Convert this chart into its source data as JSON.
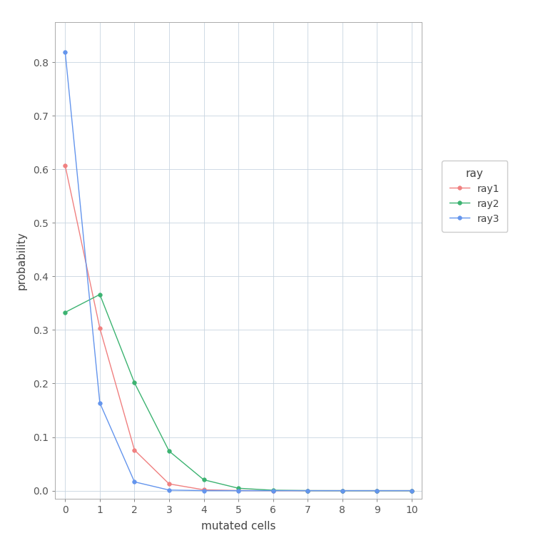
{
  "ray1": {
    "x": [
      0,
      1,
      2,
      3,
      4,
      5,
      6,
      7,
      8,
      9,
      10
    ],
    "y": [
      0.6065,
      0.3033,
      0.0758,
      0.0126,
      0.0016,
      0.0002,
      0.0,
      0.0,
      0.0,
      0.0,
      0.0
    ],
    "color": "#F08080",
    "label": "ray1"
  },
  "ray2": {
    "x": [
      0,
      1,
      2,
      3,
      4,
      5,
      6,
      7,
      8,
      9,
      10
    ],
    "y": [
      0.3329,
      0.3662,
      0.2013,
      0.0738,
      0.0203,
      0.0045,
      0.0008,
      0.0001,
      0.0,
      0.0,
      0.0
    ],
    "color": "#3CB371",
    "label": "ray2"
  },
  "ray3": {
    "x": [
      0,
      1,
      2,
      3,
      4,
      5,
      6,
      7,
      8,
      9,
      10
    ],
    "y": [
      0.8187,
      0.1637,
      0.0164,
      0.0011,
      0.0001,
      0.0,
      0.0,
      0.0,
      0.0,
      0.0,
      0.0
    ],
    "color": "#6495ED",
    "label": "ray3"
  },
  "xlabel": "mutated cells",
  "ylabel": "probability",
  "legend_title": "ray",
  "xlim": [
    -0.3,
    10.3
  ],
  "ylim": [
    -0.015,
    0.875
  ],
  "xticks": [
    0,
    1,
    2,
    3,
    4,
    5,
    6,
    7,
    8,
    9,
    10
  ],
  "yticks": [
    0.0,
    0.1,
    0.2,
    0.3,
    0.4,
    0.5,
    0.6,
    0.7,
    0.8
  ],
  "plot_bg_color": "#FFFFFF",
  "fig_bg_color": "#FFFFFF",
  "grid_color": "#C8D4E0",
  "spine_color": "#AAAAAA",
  "label_fontsize": 11,
  "tick_fontsize": 10,
  "legend_fontsize": 10,
  "legend_title_fontsize": 11,
  "marker_size": 4,
  "line_width": 1.0
}
